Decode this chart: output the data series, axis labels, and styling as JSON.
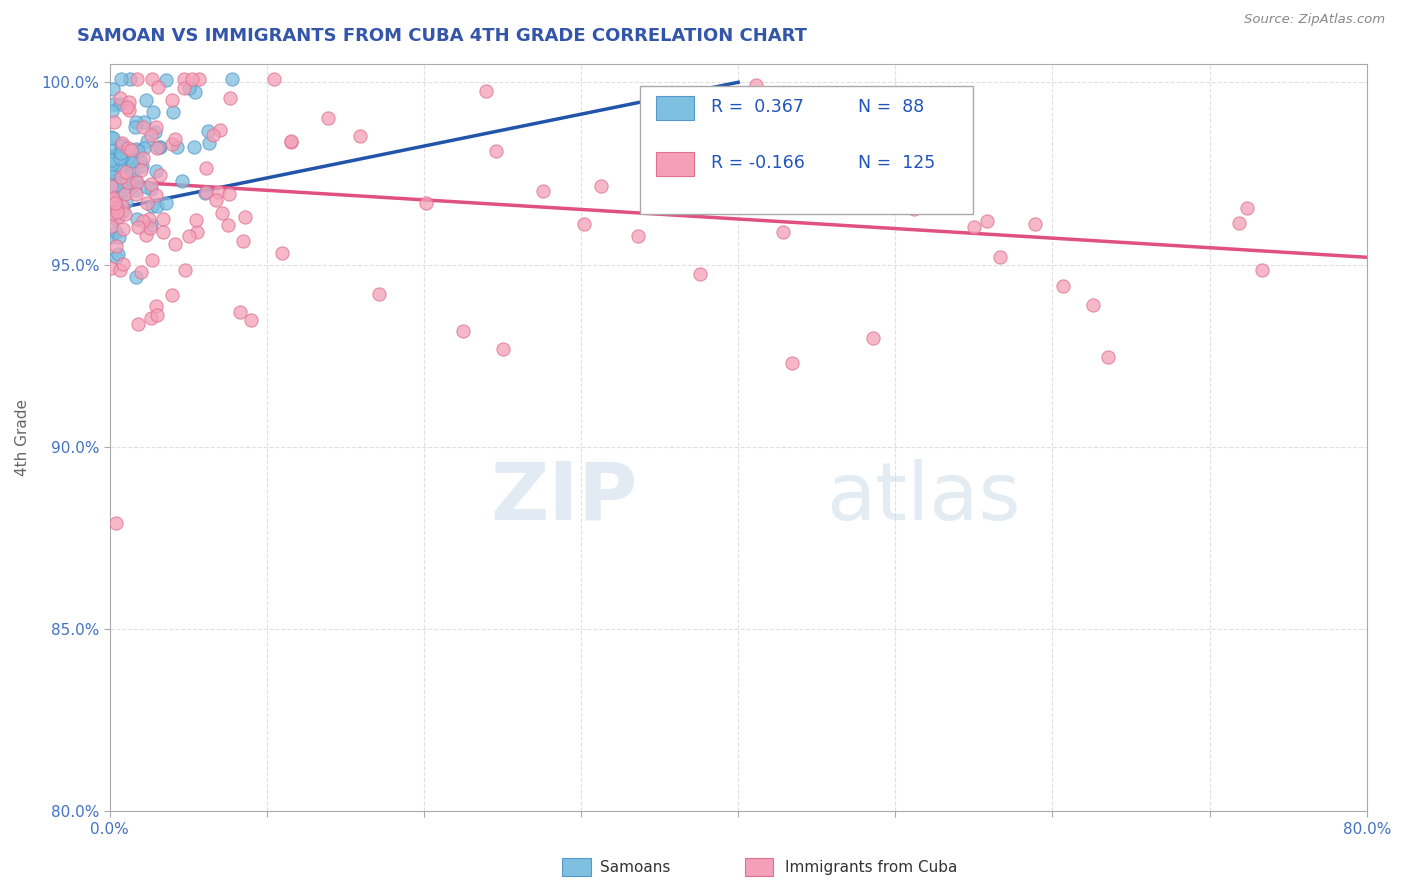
{
  "title": "SAMOAN VS IMMIGRANTS FROM CUBA 4TH GRADE CORRELATION CHART",
  "ylabel": "4th Grade",
  "source_text": "Source: ZipAtlas.com",
  "legend_blue_label": "Samoans",
  "legend_pink_label": "Immigrants from Cuba",
  "blue_color": "#7fbfdf",
  "pink_color": "#f4a0b8",
  "blue_edge_color": "#5599cc",
  "pink_edge_color": "#e07090",
  "blue_line_color": "#2255aa",
  "pink_line_color": "#e05080",
  "xmin": 0.0,
  "xmax": 0.8,
  "ymin": 0.8,
  "ymax": 1.005,
  "blue_r": 0.367,
  "pink_r": -0.166,
  "blue_n": 88,
  "pink_n": 125,
  "blue_line_x0": 0.0,
  "blue_line_y0": 0.965,
  "blue_line_x1": 0.4,
  "blue_line_y1": 1.0,
  "pink_line_x0": 0.0,
  "pink_line_y0": 0.973,
  "pink_line_x1": 0.8,
  "pink_line_y1": 0.952,
  "watermark_zip_color": "#c0d4e8",
  "watermark_atlas_color": "#b8cfe0",
  "grid_color": "#dddddd",
  "tick_color": "#4472c4",
  "title_color": "#3355aa",
  "source_color": "#888888",
  "ylabel_color": "#666666"
}
